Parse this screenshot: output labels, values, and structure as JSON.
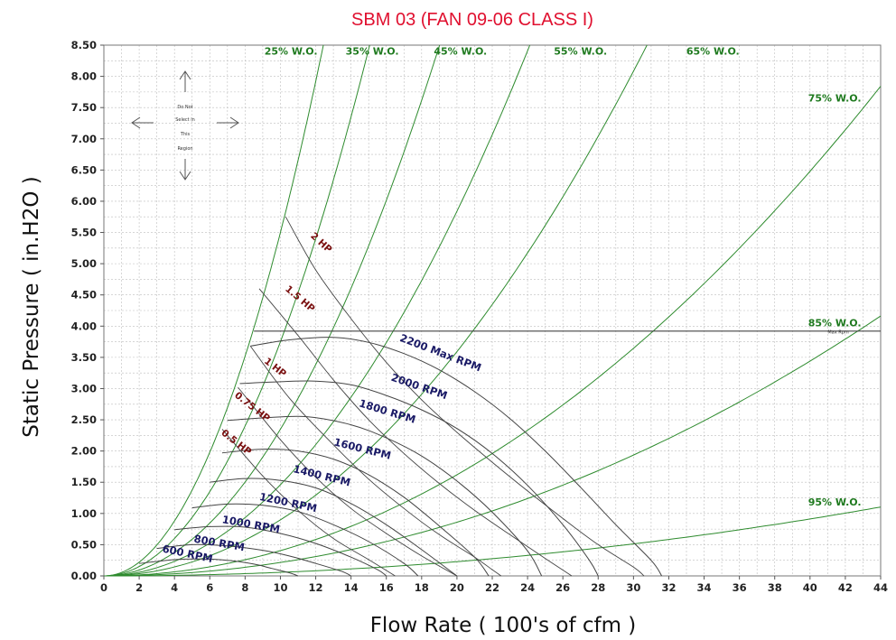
{
  "chart_data": {
    "type": "line",
    "title": "SBM 03 (FAN 09-06 CLASS I)",
    "xlabel": "Flow Rate ( 100's of cfm )",
    "ylabel": "Static Pressure ( in.H2O )",
    "xlim": [
      0,
      44
    ],
    "ylim": [
      0,
      8.5
    ],
    "x_ticks": [
      "0",
      "2",
      "4",
      "6",
      "8",
      "10",
      "12",
      "14",
      "16",
      "18",
      "20",
      "22",
      "24",
      "26",
      "28",
      "30",
      "32",
      "34",
      "36",
      "38",
      "40",
      "42",
      "44"
    ],
    "y_ticks": [
      "0.00",
      "0.50",
      "1.00",
      "1.50",
      "2.00",
      "2.50",
      "3.00",
      "3.50",
      "4.00",
      "4.50",
      "5.00",
      "5.50",
      "6.00",
      "6.50",
      "7.00",
      "7.50",
      "8.00",
      "8.50"
    ],
    "grid": true,
    "colors": {
      "title": "#e0102f",
      "wo_line": "#2e8b2e",
      "wo_label": "#1f7a1f",
      "rpm_line": "#444444",
      "rpm_label": "#1a1a66",
      "hp_line": "#444444",
      "hp_label": "#7a1010",
      "grid": "#bdbdbd"
    },
    "max_pressure_line": {
      "y": 3.92,
      "x_start": 8.5,
      "x_end": 44
    },
    "system_curves": [
      {
        "name": "25% W.O.",
        "k": 0.055
      },
      {
        "name": "35% W.O.",
        "k": 0.0375
      },
      {
        "name": "45% W.O.",
        "k": 0.0235
      },
      {
        "name": "55% W.O.",
        "k": 0.0146
      },
      {
        "name": "65% W.O.",
        "k": 0.00898
      },
      {
        "name": "75% W.O.",
        "k": 0.00405
      },
      {
        "name": "85% W.O.",
        "k": 0.00215
      },
      {
        "name": "95% W.O.",
        "k": 0.00057
      }
    ],
    "rpm_curves": [
      {
        "name": "600 RPM",
        "points": [
          [
            2,
            0.2
          ],
          [
            4,
            0.26
          ],
          [
            5.5,
            0.27
          ],
          [
            7,
            0.25
          ],
          [
            8.5,
            0.19
          ],
          [
            9.5,
            0.12
          ],
          [
            10.5,
            0.05
          ],
          [
            11,
            0
          ]
        ]
      },
      {
        "name": "800 RPM",
        "points": [
          [
            3,
            0.44
          ],
          [
            5,
            0.5
          ],
          [
            7,
            0.48
          ],
          [
            9,
            0.41
          ],
          [
            10.5,
            0.32
          ],
          [
            12,
            0.2
          ],
          [
            13.5,
            0.07
          ],
          [
            14,
            0
          ]
        ]
      },
      {
        "name": "1000 RPM",
        "points": [
          [
            4,
            0.74
          ],
          [
            6,
            0.79
          ],
          [
            8,
            0.78
          ],
          [
            10,
            0.68
          ],
          [
            12,
            0.52
          ],
          [
            14,
            0.3
          ],
          [
            15.5,
            0.1
          ],
          [
            16,
            0
          ]
        ]
      },
      {
        "name": "1200 RPM",
        "points": [
          [
            5,
            1.09
          ],
          [
            7,
            1.15
          ],
          [
            9,
            1.13
          ],
          [
            11,
            1.03
          ],
          [
            13,
            0.82
          ],
          [
            15,
            0.55
          ],
          [
            17,
            0.2
          ],
          [
            17.8,
            0
          ]
        ]
      },
      {
        "name": "1400 RPM",
        "points": [
          [
            6,
            1.5
          ],
          [
            8,
            1.56
          ],
          [
            10,
            1.53
          ],
          [
            12,
            1.41
          ],
          [
            14,
            1.16
          ],
          [
            16,
            0.82
          ],
          [
            18,
            0.42
          ],
          [
            20,
            0
          ]
        ]
      },
      {
        "name": "1600 RPM",
        "points": [
          [
            6.7,
            1.97
          ],
          [
            9,
            2.03
          ],
          [
            11,
            2.0
          ],
          [
            13,
            1.87
          ],
          [
            15,
            1.62
          ],
          [
            17,
            1.26
          ],
          [
            19,
            0.8
          ],
          [
            21,
            0.3
          ],
          [
            21.8,
            0
          ]
        ]
      },
      {
        "name": "1800 RPM",
        "points": [
          [
            7,
            2.49
          ],
          [
            9,
            2.53
          ],
          [
            11.5,
            2.55
          ],
          [
            14,
            2.42
          ],
          [
            16,
            2.21
          ],
          [
            18,
            1.92
          ],
          [
            20,
            1.52
          ],
          [
            22,
            1.02
          ],
          [
            24,
            0.4
          ],
          [
            24.8,
            0
          ]
        ]
      },
      {
        "name": "2000 RPM",
        "points": [
          [
            7.7,
            3.08
          ],
          [
            10,
            3.11
          ],
          [
            12,
            3.12
          ],
          [
            14,
            3.06
          ],
          [
            16,
            2.89
          ],
          [
            18,
            2.66
          ],
          [
            20,
            2.36
          ],
          [
            22,
            1.96
          ],
          [
            24,
            1.45
          ],
          [
            26,
            0.82
          ],
          [
            27.5,
            0.25
          ],
          [
            28,
            0
          ]
        ]
      },
      {
        "name": "2200 Max RPM",
        "points": [
          [
            8.3,
            3.68
          ],
          [
            10.5,
            3.78
          ],
          [
            13,
            3.82
          ],
          [
            15,
            3.74
          ],
          [
            17,
            3.56
          ],
          [
            19,
            3.3
          ],
          [
            21,
            2.95
          ],
          [
            23,
            2.52
          ],
          [
            25,
            2.0
          ],
          [
            27,
            1.42
          ],
          [
            29,
            0.82
          ],
          [
            31,
            0.25
          ],
          [
            31.6,
            0
          ]
        ]
      }
    ],
    "hp_curves": [
      {
        "name": "0.5 HP",
        "points": [
          [
            6.7,
            2.35
          ],
          [
            9,
            1.6
          ],
          [
            11,
            1.05
          ],
          [
            13,
            0.6
          ],
          [
            15,
            0.26
          ],
          [
            16.5,
            0
          ]
        ]
      },
      {
        "name": "0.75 HP",
        "points": [
          [
            7.6,
            3.02
          ],
          [
            10,
            2.18
          ],
          [
            12,
            1.58
          ],
          [
            14,
            1.08
          ],
          [
            16,
            0.68
          ],
          [
            18,
            0.32
          ],
          [
            20,
            0
          ]
        ]
      },
      {
        "name": "1 HP",
        "points": [
          [
            8.3,
            3.68
          ],
          [
            10.5,
            2.85
          ],
          [
            13,
            2.1
          ],
          [
            15,
            1.55
          ],
          [
            17,
            1.08
          ],
          [
            19,
            0.66
          ],
          [
            21,
            0.3
          ],
          [
            22,
            0.1
          ],
          [
            22.5,
            0
          ]
        ]
      },
      {
        "name": "1.5 HP",
        "points": [
          [
            8.8,
            4.6
          ],
          [
            11,
            3.85
          ],
          [
            13,
            3.14
          ],
          [
            15,
            2.5
          ],
          [
            17,
            1.96
          ],
          [
            19,
            1.48
          ],
          [
            21,
            1.05
          ],
          [
            23,
            0.66
          ],
          [
            25,
            0.28
          ],
          [
            26.5,
            0
          ]
        ]
      },
      {
        "name": "2 HP",
        "points": [
          [
            10.3,
            5.75
          ],
          [
            12,
            4.9
          ],
          [
            14,
            4.12
          ],
          [
            16,
            3.42
          ],
          [
            18,
            2.82
          ],
          [
            20,
            2.3
          ],
          [
            22,
            1.82
          ],
          [
            24,
            1.36
          ],
          [
            26,
            0.92
          ],
          [
            28,
            0.5
          ],
          [
            30,
            0.14
          ],
          [
            30.6,
            0
          ]
        ]
      }
    ],
    "labels": {
      "wo": [
        {
          "text": "25% W.O.",
          "x": 10.6,
          "y": 8.35
        },
        {
          "text": "35% W.O.",
          "x": 15.2,
          "y": 8.35
        },
        {
          "text": "45% W.O.",
          "x": 20.2,
          "y": 8.35
        },
        {
          "text": "55% W.O.",
          "x": 27.0,
          "y": 8.35
        },
        {
          "text": "65% W.O.",
          "x": 34.5,
          "y": 8.35
        },
        {
          "text": "75% W.O.",
          "x": 41.4,
          "y": 7.6
        },
        {
          "text": "85% W.O.",
          "x": 41.4,
          "y": 4.0
        },
        {
          "text": "95% W.O.",
          "x": 41.4,
          "y": 1.13
        }
      ],
      "rpm": [
        {
          "text": "600 RPM",
          "x": 4.7,
          "y": 0.3,
          "rot": -12
        },
        {
          "text": "800 RPM",
          "x": 6.5,
          "y": 0.47,
          "rot": -10
        },
        {
          "text": "1000 RPM",
          "x": 8.3,
          "y": 0.77,
          "rot": -10
        },
        {
          "text": "1200 RPM",
          "x": 10.4,
          "y": 1.12,
          "rot": -12
        },
        {
          "text": "1400 RPM",
          "x": 12.3,
          "y": 1.55,
          "rot": -14
        },
        {
          "text": "1600 RPM",
          "x": 14.6,
          "y": 1.98,
          "rot": -14
        },
        {
          "text": "1800 RPM",
          "x": 16.0,
          "y": 2.58,
          "rot": -17
        },
        {
          "text": "2000 RPM",
          "x": 17.8,
          "y": 2.98,
          "rot": -19
        },
        {
          "text": "2200 Max RPM",
          "x": 19.0,
          "y": 3.52,
          "rot": -21
        }
      ],
      "hp": [
        {
          "text": "0.5 HP",
          "x": 7.4,
          "y": 2.1,
          "rot": -38
        },
        {
          "text": "0.75 HP",
          "x": 8.3,
          "y": 2.67,
          "rot": -38
        },
        {
          "text": "1 HP",
          "x": 9.6,
          "y": 3.3,
          "rot": -38
        },
        {
          "text": "1.5 HP",
          "x": 11.0,
          "y": 4.4,
          "rot": -40
        },
        {
          "text": "2 HP",
          "x": 12.2,
          "y": 5.3,
          "rot": -42
        }
      ],
      "max_line_note": {
        "text": "Max Rpm",
        "x": 41.6,
        "y": 3.88
      }
    },
    "region_note": [
      "Do Not",
      "Select in",
      "This",
      "Region"
    ]
  }
}
